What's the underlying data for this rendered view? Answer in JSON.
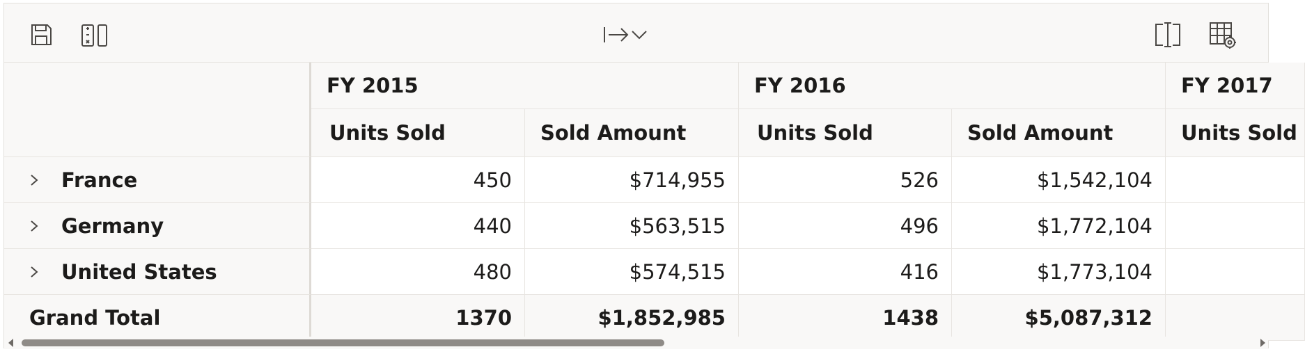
{
  "toolbar": {
    "icons": [
      "save-icon",
      "formula-icon",
      "export-icon",
      "chevron-down-icon",
      "column-resize-icon",
      "grid-settings-icon"
    ]
  },
  "columns": {
    "years": [
      {
        "label": "FY 2015"
      },
      {
        "label": "FY 2016"
      },
      {
        "label": "FY 2017"
      }
    ],
    "measures": [
      "Units Sold",
      "Sold Amount",
      "Units Sold",
      "Sold Amount",
      "Units Sold"
    ]
  },
  "rows": [
    {
      "label": "France",
      "values": [
        "450",
        "$714,955",
        "526",
        "$1,542,104"
      ]
    },
    {
      "label": "Germany",
      "values": [
        "440",
        "$563,515",
        "496",
        "$1,772,104"
      ]
    },
    {
      "label": "United States",
      "values": [
        "480",
        "$574,515",
        "416",
        "$1,773,104"
      ]
    }
  ],
  "grand_total": {
    "label": "Grand Total",
    "values": [
      "1370",
      "$1,852,985",
      "1438",
      "$5,087,312"
    ]
  },
  "colors": {
    "header_bg": "#f9f8f7",
    "border": "#e8e5e1",
    "text": "#1c1b1a",
    "scroll_thumb": "#8f8b87"
  }
}
